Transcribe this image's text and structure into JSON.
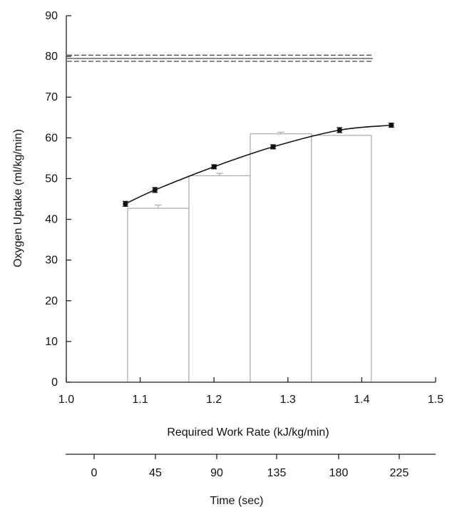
{
  "chart_data": {
    "type": "bar",
    "ylabel": "Oxygen Uptake (ml/kg/min)",
    "xlabel": "Required Work Rate (kJ/kg/min)",
    "x2label": "Time (sec)",
    "xlim": [
      1.0,
      1.5
    ],
    "ylim": [
      0,
      90
    ],
    "x_ticks": [
      "1.0",
      "1.1",
      "1.2",
      "1.3",
      "1.4",
      "1.5"
    ],
    "y_ticks": [
      "0",
      "10",
      "20",
      "30",
      "40",
      "50",
      "60",
      "70",
      "80",
      "90"
    ],
    "time_ticks": [
      "0",
      "45",
      "90",
      "135",
      "180",
      "225"
    ],
    "grid": false,
    "bars": [
      {
        "x0": 1.083,
        "x1": 1.166,
        "value": 42.7,
        "err": 0.8
      },
      {
        "x0": 1.166,
        "x1": 1.249,
        "value": 50.7,
        "err": 0.6
      },
      {
        "x0": 1.249,
        "x1": 1.332,
        "value": 61.0,
        "err": 0.4
      },
      {
        "x0": 1.332,
        "x1": 1.413,
        "value": 60.6,
        "err": 0.0
      }
    ],
    "line": {
      "x": [
        1.08,
        1.12,
        1.2,
        1.28,
        1.37,
        1.44
      ],
      "y": [
        43.8,
        47.2,
        52.9,
        57.8,
        61.9,
        63.1
      ],
      "err": [
        0.6,
        0.6,
        0.5,
        0.5,
        0.6,
        0.5
      ]
    },
    "reference_lines": [
      {
        "y": 80.3,
        "style": "dashed"
      },
      {
        "y": 79.5,
        "style": "solid"
      },
      {
        "y": 78.8,
        "style": "dashed"
      }
    ],
    "colors": {
      "line": "#111111",
      "bar_edge": "#aaaaaa",
      "ref_line": "#444444",
      "axis": "#222222"
    }
  }
}
